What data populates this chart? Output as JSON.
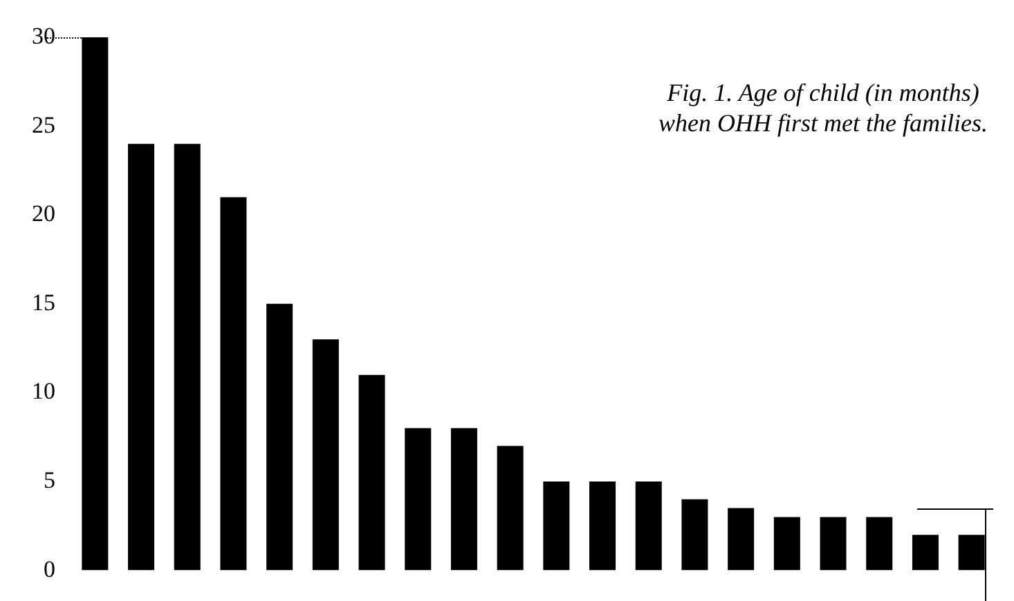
{
  "chart_data": {
    "type": "bar",
    "title": "Fig. 1. Age of child (in months)\nwhen OHH first met the families.",
    "categories": [
      null,
      null,
      null,
      null,
      null,
      null,
      null,
      null,
      null,
      null,
      null,
      null,
      null,
      null,
      null,
      null,
      null,
      null,
      null,
      null
    ],
    "values": [
      30,
      24,
      24,
      21,
      15,
      13,
      11,
      8,
      8,
      7,
      5,
      5,
      5,
      4,
      3.5,
      3,
      3,
      3,
      2,
      2
    ],
    "color": "#000000",
    "ylim": [
      0,
      30
    ],
    "yticks": [
      0,
      5,
      10,
      15,
      20,
      25,
      30
    ],
    "grid": false,
    "legend": false,
    "tick_labels": "y"
  }
}
